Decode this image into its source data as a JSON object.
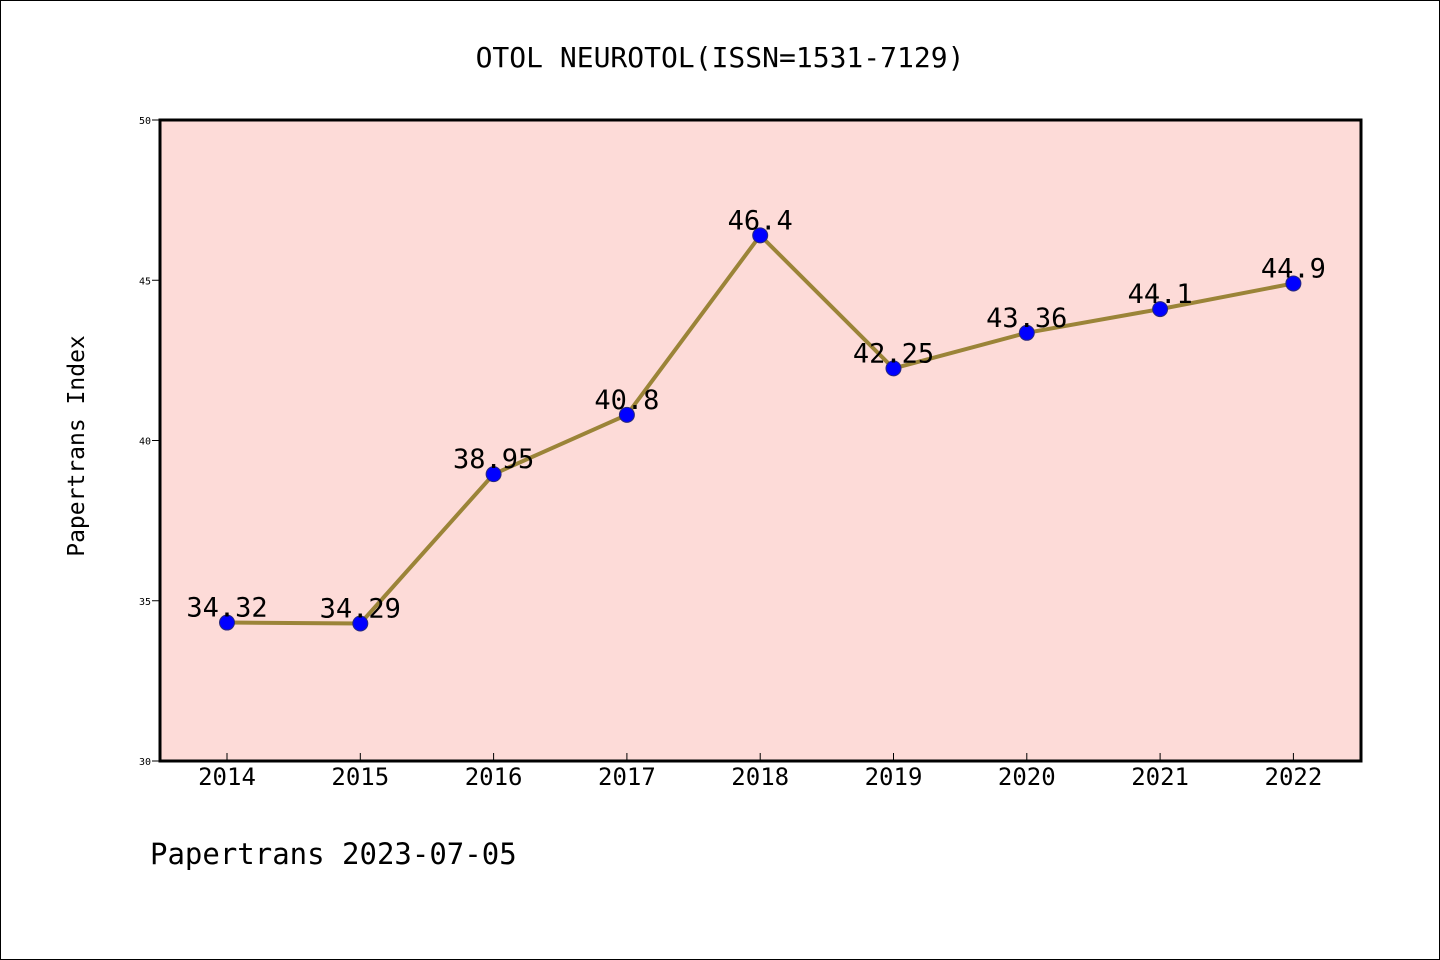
{
  "chart_data": {
    "type": "line",
    "title": "OTOL NEUROTOL(ISSN=1531-7129)",
    "xlabel": "",
    "ylabel": "Papertrans Index",
    "categories": [
      "2014",
      "2015",
      "2016",
      "2017",
      "2018",
      "2019",
      "2020",
      "2021",
      "2022"
    ],
    "series": [
      {
        "values": [
          34.32,
          34.29,
          38.95,
          40.8,
          46.4,
          42.25,
          43.36,
          44.1,
          44.9
        ],
        "data_labels": [
          "34.32",
          "34.29",
          "38.95",
          "40.8",
          "46.4",
          "42.25",
          "43.36",
          "44.1",
          "44.9"
        ],
        "line_color": "#9b8438",
        "marker_color": "#0000ff"
      }
    ],
    "ylim": [
      30,
      50
    ],
    "y_ticks": [
      "30",
      "35",
      "40",
      "45",
      "50"
    ],
    "plot_background": "#fddbd8",
    "grid": false,
    "legend": "none"
  },
  "footer": "Papertrans 2023-07-05"
}
